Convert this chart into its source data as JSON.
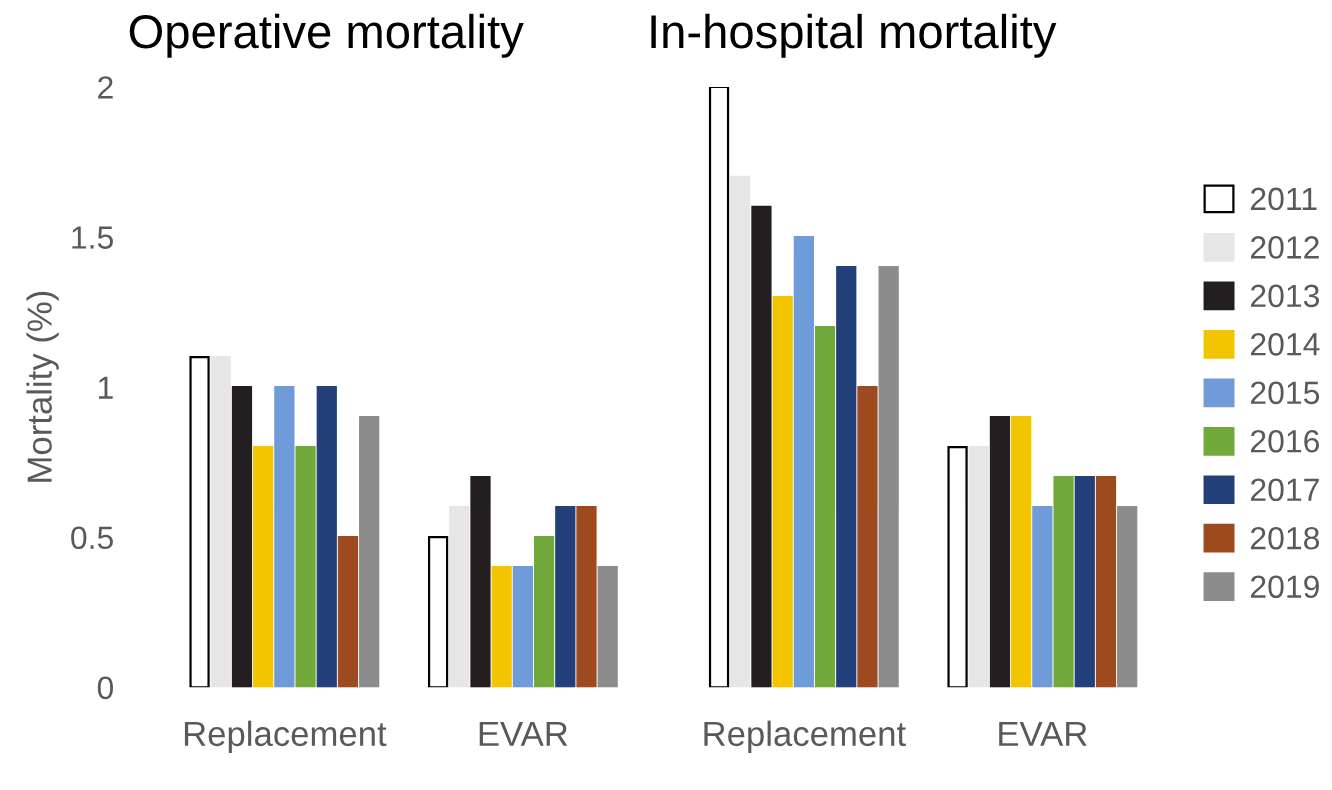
{
  "chart_data": [
    {
      "type": "bar",
      "title": "Operative mortality",
      "ylabel": "Mortality (%)",
      "categories": [
        "Replacement",
        "EVAR"
      ],
      "ylim": [
        0,
        2
      ],
      "yticks": [
        0,
        0.5,
        1,
        1.5,
        2
      ],
      "grid": false,
      "legend": "right",
      "series": [
        {
          "name": "2011",
          "color": "#ffffff",
          "values": [
            1.1,
            0.5
          ]
        },
        {
          "name": "2012",
          "color": "#e6e6e6",
          "values": [
            1.1,
            0.6
          ]
        },
        {
          "name": "2013",
          "color": "#231f20",
          "values": [
            1.0,
            0.7
          ]
        },
        {
          "name": "2014",
          "color": "#f2c500",
          "values": [
            0.8,
            0.4
          ]
        },
        {
          "name": "2015",
          "color": "#6f9bd8",
          "values": [
            1.0,
            0.4
          ]
        },
        {
          "name": "2016",
          "color": "#72a93b",
          "values": [
            0.8,
            0.5
          ]
        },
        {
          "name": "2017",
          "color": "#24407a",
          "values": [
            1.0,
            0.6
          ]
        },
        {
          "name": "2018",
          "color": "#9e4a1f",
          "values": [
            0.5,
            0.6
          ]
        },
        {
          "name": "2019",
          "color": "#8c8c8c",
          "values": [
            0.9,
            0.4
          ]
        }
      ]
    },
    {
      "type": "bar",
      "title": "In-hospital mortality",
      "categories": [
        "Replacement",
        "EVAR"
      ],
      "ylim": [
        0,
        2
      ],
      "tick_labels": "x",
      "grid": false,
      "legend": "right",
      "series": [
        {
          "name": "2011",
          "color": "#ffffff",
          "values": [
            2.0,
            0.8
          ]
        },
        {
          "name": "2012",
          "color": "#e6e6e6",
          "values": [
            1.7,
            0.8
          ]
        },
        {
          "name": "2013",
          "color": "#231f20",
          "values": [
            1.6,
            0.9
          ]
        },
        {
          "name": "2014",
          "color": "#f2c500",
          "values": [
            1.3,
            0.9
          ]
        },
        {
          "name": "2015",
          "color": "#6f9bd8",
          "values": [
            1.5,
            0.6
          ]
        },
        {
          "name": "2016",
          "color": "#72a93b",
          "values": [
            1.2,
            0.7
          ]
        },
        {
          "name": "2017",
          "color": "#24407a",
          "values": [
            1.4,
            0.7
          ]
        },
        {
          "name": "2018",
          "color": "#9e4a1f",
          "values": [
            1.0,
            0.7
          ]
        },
        {
          "name": "2019",
          "color": "#8c8c8c",
          "values": [
            1.4,
            0.6
          ]
        }
      ]
    }
  ]
}
